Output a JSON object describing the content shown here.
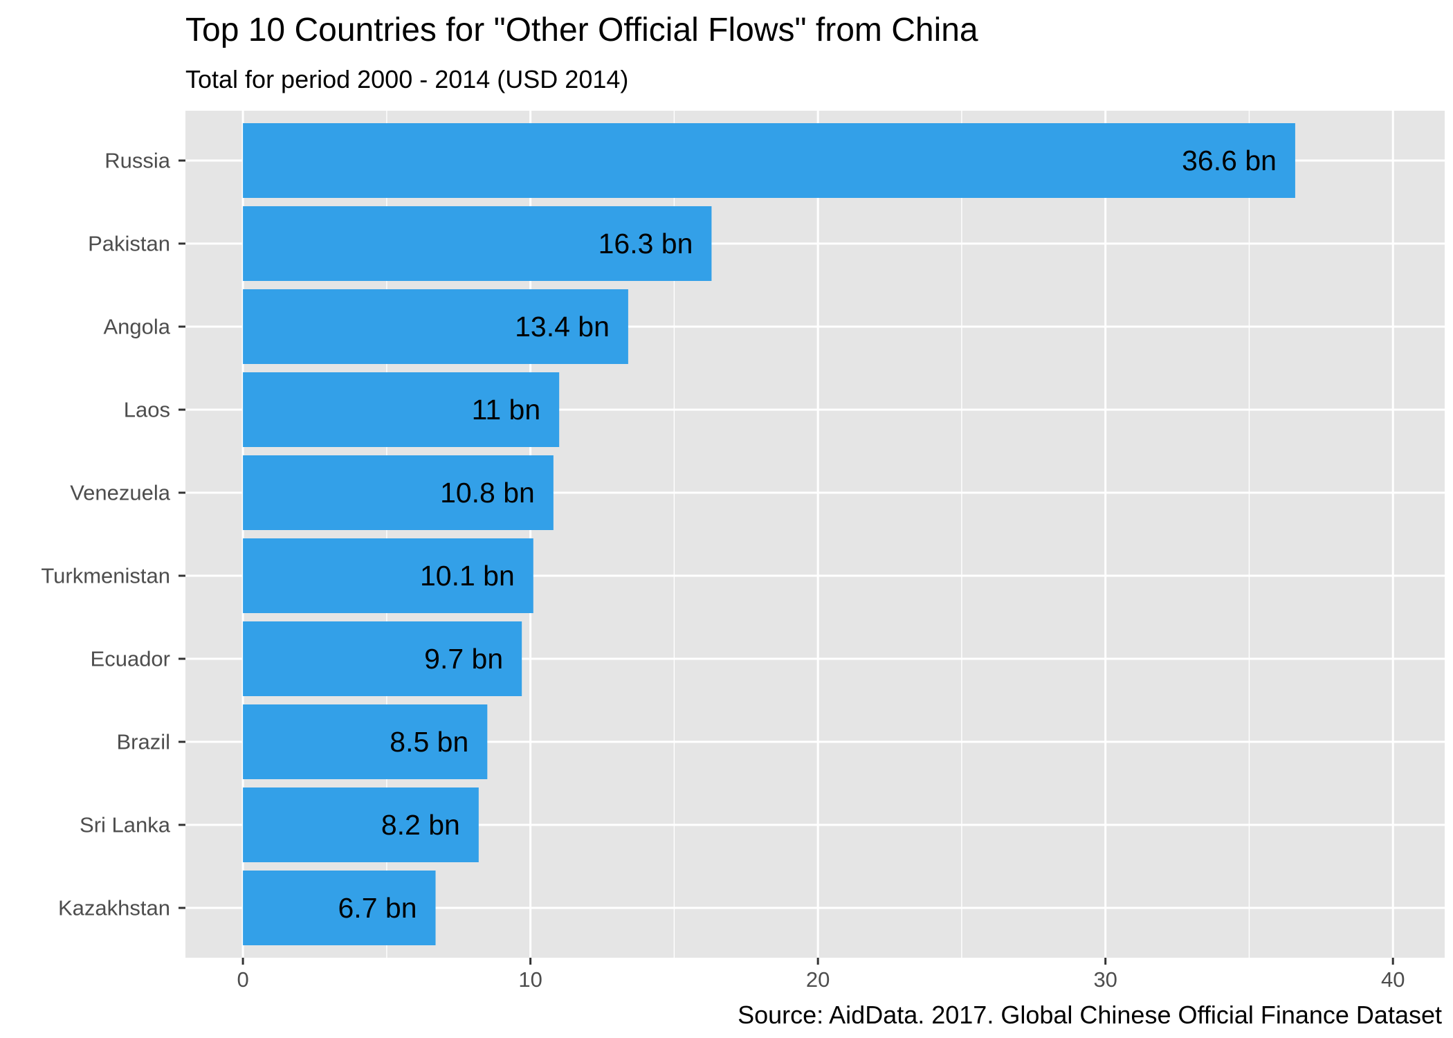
{
  "title": "Top 10 Countries for \"Other Official Flows\" from China",
  "subtitle": "Total for period 2000 - 2014 (USD 2014)",
  "caption": "Source: AidData. 2017. Global Chinese Official Finance Dataset",
  "chart_data": {
    "type": "bar",
    "orientation": "horizontal",
    "title": "Top 10 Countries for \"Other Official Flows\" from China",
    "subtitle": "Total for period 2000 - 2014 (USD 2014)",
    "xlabel": "",
    "ylabel": "",
    "categories": [
      "Russia",
      "Pakistan",
      "Angola",
      "Laos",
      "Venezuela",
      "Turkmenistan",
      "Ecuador",
      "Brazil",
      "Sri Lanka",
      "Kazakhstan"
    ],
    "values": [
      36.6,
      16.3,
      13.4,
      11,
      10.8,
      10.1,
      9.7,
      8.5,
      8.2,
      6.7
    ],
    "data_labels": [
      "36.6 bn",
      "16.3 bn",
      "13.4 bn",
      "11 bn",
      "10.8 bn",
      "10.1 bn",
      "9.7 bn",
      "8.5 bn",
      "8.2 bn",
      "6.7 bn"
    ],
    "xlim": [
      -2,
      41.8
    ],
    "xticks": [
      0,
      10,
      20,
      30,
      40
    ],
    "grid": true,
    "legend": "none",
    "colors": {
      "bar": "#33a0e8",
      "panel": "#e5e5e5",
      "grid": "#ffffff"
    }
  }
}
